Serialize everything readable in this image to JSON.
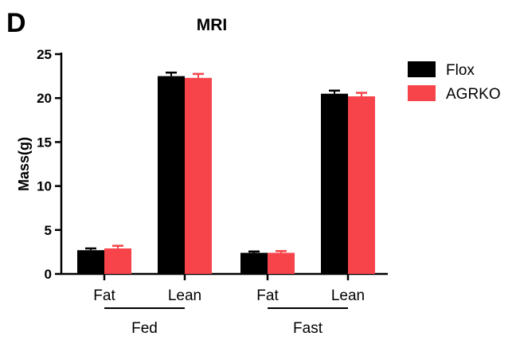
{
  "panel_label": "D",
  "chart_data": {
    "type": "bar",
    "title": "MRI",
    "xlabel": "",
    "ylabel": "Mass(g)",
    "ylim": [
      0,
      25
    ],
    "yticks": [
      "0",
      "5",
      "10",
      "15",
      "20",
      "25"
    ],
    "categories": [
      "Fat",
      "Lean",
      "Fat",
      "Lean"
    ],
    "groups": [
      {
        "label": "Fed",
        "categories": [
          "Fat",
          "Lean"
        ]
      },
      {
        "label": "Fast",
        "categories": [
          "Fat",
          "Lean"
        ]
      }
    ],
    "series": [
      {
        "name": "Flox",
        "color": "#000000",
        "values": [
          2.7,
          22.5,
          2.4,
          20.5
        ],
        "errors": [
          0.2,
          0.4,
          0.15,
          0.35
        ]
      },
      {
        "name": "AGRKO",
        "color": "#f7434a",
        "values": [
          2.9,
          22.3,
          2.4,
          20.2
        ],
        "errors": [
          0.3,
          0.45,
          0.2,
          0.4
        ]
      }
    ],
    "legend_position": "top-right",
    "grid": false
  }
}
